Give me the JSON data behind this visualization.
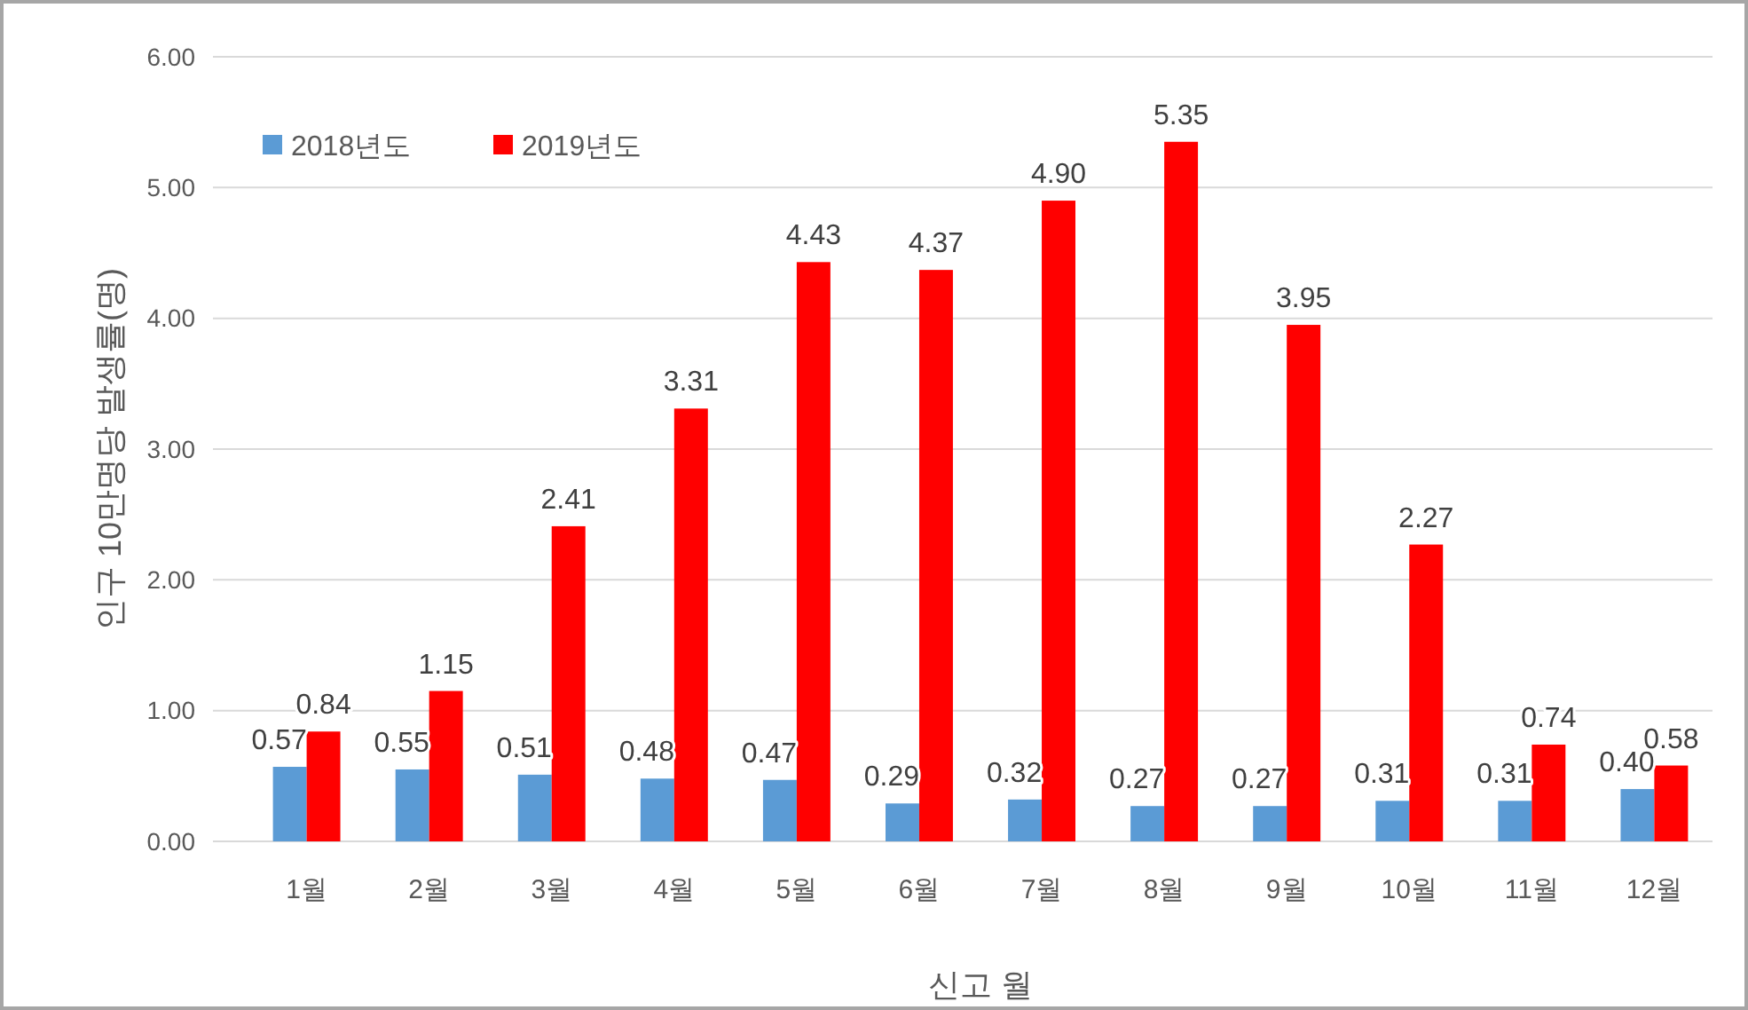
{
  "chart_data": {
    "type": "bar",
    "xlabel": "신고 월",
    "ylabel": "인구 10만명당 발생률(명)",
    "categories": [
      "1월",
      "2월",
      "3월",
      "4월",
      "5월",
      "6월",
      "7월",
      "8월",
      "9월",
      "10월",
      "11월",
      "12월"
    ],
    "series": [
      {
        "name": "2018년도",
        "color": "#5b9bd5",
        "values": [
          0.57,
          0.55,
          0.51,
          0.48,
          0.47,
          0.29,
          0.32,
          0.27,
          0.27,
          0.31,
          0.31,
          0.4
        ],
        "value_labels": [
          "0.57",
          "0.55",
          "0.51",
          "0.48",
          "0.47",
          "0.29",
          "0.32",
          "0.27",
          "0.27",
          "0.31",
          "0.31",
          "0.40"
        ]
      },
      {
        "name": "2019년도",
        "color": "#ff0000",
        "values": [
          0.84,
          1.15,
          2.41,
          3.31,
          4.43,
          4.37,
          4.9,
          5.35,
          3.95,
          2.27,
          0.74,
          0.58
        ],
        "value_labels": [
          "0.84",
          "1.15",
          "2.41",
          "3.31",
          "4.43",
          "4.37",
          "4.90",
          "5.35",
          "3.95",
          "2.27",
          "0.74",
          "0.58"
        ]
      }
    ],
    "ylim": [
      0,
      6
    ],
    "yticks": [
      {
        "value": 0,
        "label": "0.00"
      },
      {
        "value": 1,
        "label": "1.00"
      },
      {
        "value": 2,
        "label": "2.00"
      },
      {
        "value": 3,
        "label": "3.00"
      },
      {
        "value": 4,
        "label": "4.00"
      },
      {
        "value": 5,
        "label": "5.00"
      },
      {
        "value": 6,
        "label": "6.00"
      }
    ],
    "grid": "y",
    "legend": "top left"
  }
}
